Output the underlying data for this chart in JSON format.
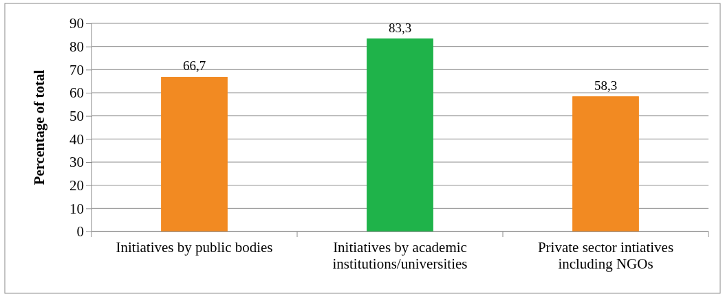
{
  "chart_data": {
    "type": "bar",
    "ylabel": "Percentage of total",
    "categories": [
      "Initiatives by public bodies",
      "Initiatives by academic institutions/universities",
      "Private sector intiatives including NGOs"
    ],
    "values": [
      66.7,
      83.3,
      58.3
    ],
    "value_labels": [
      "66,7",
      "83,3",
      "58,3"
    ],
    "colors": [
      "#f28a22",
      "#1fb34a",
      "#f28a22"
    ],
    "ylim": [
      0,
      90
    ],
    "yticks": [
      0,
      10,
      20,
      30,
      40,
      50,
      60,
      70,
      80,
      90
    ],
    "grid": "y"
  }
}
